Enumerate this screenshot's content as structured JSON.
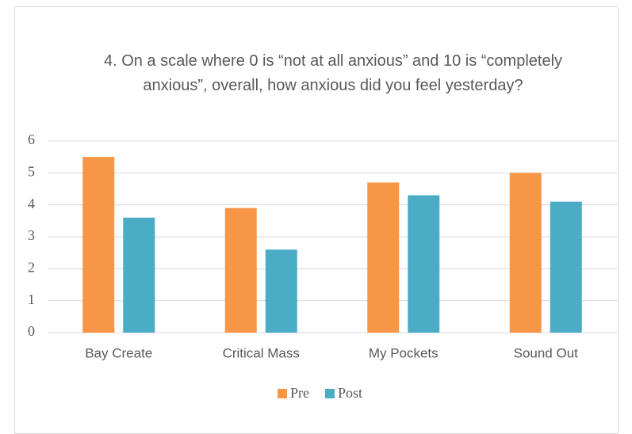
{
  "chart_data": {
    "type": "bar",
    "title": "4. On a scale where 0 is “not at all anxious” and 10 is “completely anxious”, overall, how anxious did you feel yesterday?",
    "categories": [
      "Bay Create",
      "Critical Mass",
      "My Pockets",
      "Sound Out"
    ],
    "series": [
      {
        "name": "Pre",
        "color": "#f79646",
        "values": [
          5.5,
          3.9,
          4.7,
          5.0
        ]
      },
      {
        "name": "Post",
        "color": "#4bacc6",
        "values": [
          3.6,
          2.6,
          4.3,
          4.1
        ]
      }
    ],
    "ylim": [
      0,
      6
    ],
    "yticks": [
      0,
      1,
      2,
      3,
      4,
      5,
      6
    ],
    "grid": true,
    "legend": "bottom"
  }
}
